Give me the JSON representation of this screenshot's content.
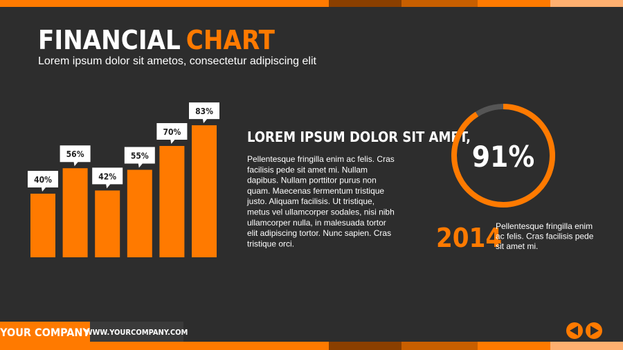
{
  "header": {
    "title_main": "FINANCIAL",
    "title_accent": "CHART",
    "subtitle": "Lorem ipsum dolor sit ametos, consectetur adipiscing elit"
  },
  "chart_data": [
    {
      "type": "bar",
      "categories": [
        null,
        null,
        null,
        null,
        null,
        null
      ],
      "values": [
        40,
        56,
        42,
        55,
        70,
        83
      ],
      "value_labels": [
        "40%",
        "56%",
        "42%",
        "55%",
        "70%",
        "83%"
      ],
      "color": "#ff7a00"
    },
    {
      "type": "donut",
      "values": [
        91
      ],
      "value_labels": [
        "91%"
      ],
      "color": "#ff7a00",
      "rest_color": "#555555"
    }
  ],
  "body": {
    "heading": "LOREM IPSUM DOLOR SIT AMET,",
    "lines": [
      "Pellentesque fringilla enim ac felis. Cras",
      "facilisis pede sit amet mi. Nullam",
      "dapibus. Nullam porttitor purus non",
      "quam. Maecenas fermentum tristique",
      "justo. Aliquam facilisis. Ut tristique,",
      "metus vel ullamcorper sodales, nisi nibh",
      "ullamcorper nulla, in malesuada tortor",
      "elit adipiscing tortor. Nunc sapien. Cras",
      "tristique orci."
    ]
  },
  "stat": {
    "year": "2014",
    "lines": [
      "Pellentesque fringilla enim",
      "ac felis. Cras facilisis pede",
      "sit amet mi."
    ]
  },
  "footer": {
    "company": "YOUR COMPANY",
    "url": "WWW.YOURCOMPANY.COM"
  }
}
